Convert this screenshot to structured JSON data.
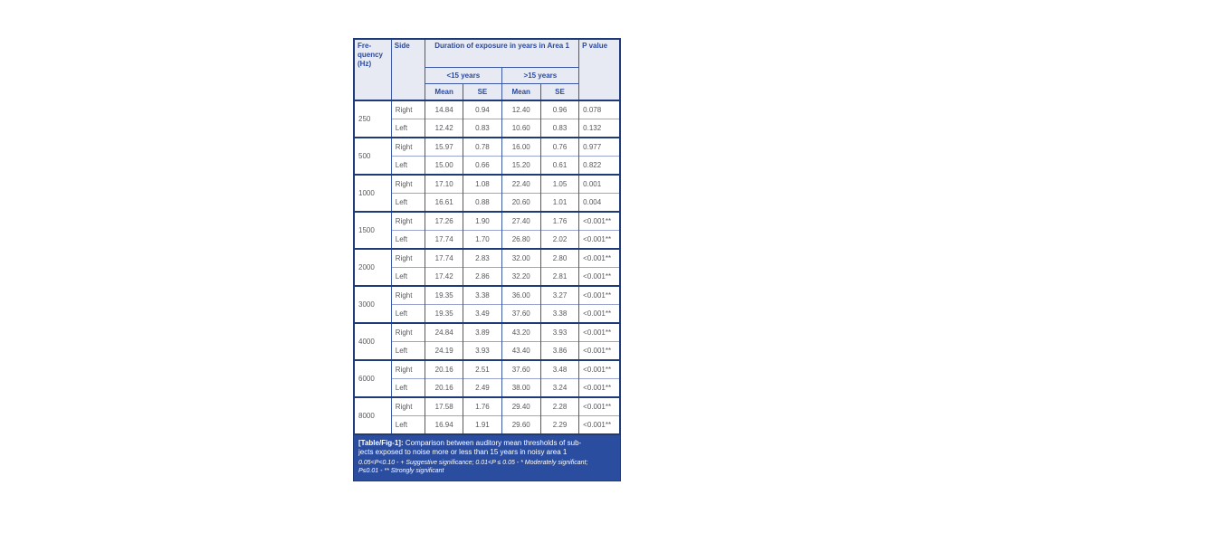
{
  "table": {
    "header": {
      "frequency": "Fre-quency (Hz)",
      "side": "Side",
      "duration": "Duration of exposure in years in Area 1",
      "lt15": "<15 years",
      "gt15": ">15 years",
      "mean1": "Mean",
      "se1": "SE",
      "mean2": "Mean",
      "se2": "SE",
      "p_value": "P value"
    },
    "groups": [
      {
        "frequency": "250",
        "rows": [
          [
            "Right",
            "14.84",
            "0.94",
            "12.40",
            "0.96",
            "0.078"
          ],
          [
            "Left",
            "12.42",
            "0.83",
            "10.60",
            "0.83",
            "0.132"
          ]
        ]
      },
      {
        "frequency": "500",
        "rows": [
          [
            "Right",
            "15.97",
            "0.78",
            "16.00",
            "0.76",
            "0.977"
          ],
          [
            "Left",
            "15.00",
            "0.66",
            "15.20",
            "0.61",
            "0.822"
          ]
        ]
      },
      {
        "frequency": "1000",
        "rows": [
          [
            "Right",
            "17.10",
            "1.08",
            "22.40",
            "1.05",
            "0.001"
          ],
          [
            "Left",
            "16.61",
            "0.88",
            "20.60",
            "1.01",
            "0.004"
          ]
        ]
      },
      {
        "frequency": "1500",
        "rows": [
          [
            "Right",
            "17.26",
            "1.90",
            "27.40",
            "1.76",
            "<0.001**"
          ],
          [
            "Left",
            "17.74",
            "1.70",
            "26.80",
            "2.02",
            "<0.001**"
          ]
        ]
      },
      {
        "frequency": "2000",
        "rows": [
          [
            "Right",
            "17.74",
            "2.83",
            "32.00",
            "2.80",
            "<0.001**"
          ],
          [
            "Left",
            "17.42",
            "2.86",
            "32.20",
            "2.81",
            "<0.001**"
          ]
        ]
      },
      {
        "frequency": "3000",
        "rows": [
          [
            "Right",
            "19.35",
            "3.38",
            "36.00",
            "3.27",
            "<0.001**"
          ],
          [
            "Left",
            "19.35",
            "3.49",
            "37.60",
            "3.38",
            "<0.001**"
          ]
        ]
      },
      {
        "frequency": "4000",
        "rows": [
          [
            "Right",
            "24.84",
            "3.89",
            "43.20",
            "3.93",
            "<0.001**"
          ],
          [
            "Left",
            "24.19",
            "3.93",
            "43.40",
            "3.86",
            "<0.001**"
          ]
        ]
      },
      {
        "frequency": "6000",
        "rows": [
          [
            "Right",
            "20.16",
            "2.51",
            "37.60",
            "3.48",
            "<0.001**"
          ],
          [
            "Left",
            "20.16",
            "2.49",
            "38.00",
            "3.24",
            "<0.001**"
          ]
        ]
      },
      {
        "frequency": "8000",
        "rows": [
          [
            "Right",
            "17.58",
            "1.76",
            "29.40",
            "2.28",
            "<0.001**"
          ],
          [
            "Left",
            "16.94",
            "1.91",
            "29.60",
            "2.29",
            "<0.001**"
          ]
        ]
      }
    ]
  },
  "caption": {
    "label": "[Table/Fig-1]:",
    "text_line1": "Comparison between auditory mean thresholds of sub-",
    "text_line2": "jects exposed to noise more or less than 15 years in noisy area 1",
    "note_line1": "0.05<P<0.10  - + Suggestive significance; 0.01<P ≤ 0.05 - * Moderately significant;",
    "note_line2": "P≤0.01 - ** Strongly significant"
  },
  "colors": {
    "header_bg": "#e7eaf3",
    "header_text": "#2b4a9b",
    "body_text": "#57585c",
    "border_dark": "#1e3a78",
    "border_mid": "#3d59a4",
    "border_light": "#9aa6d0",
    "caption_bg": "#2b4d9f",
    "caption_text": "#ffffff"
  }
}
